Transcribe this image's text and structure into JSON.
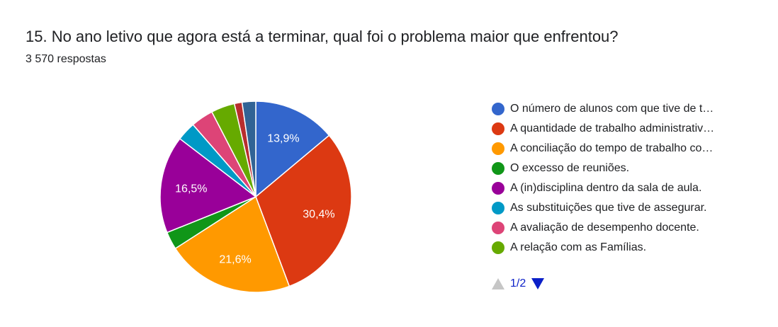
{
  "question": {
    "title": "15. No ano letivo que agora está a terminar, qual foi o problema maior que enfrentou?",
    "responses": "3 570 respostas"
  },
  "pager": {
    "text": "1/2",
    "prev_icon": "triangle-up-icon",
    "next_icon": "triangle-down-icon"
  },
  "chart_data": {
    "type": "pie",
    "title": "",
    "start_angle_deg": 90,
    "direction": "clockwise",
    "legend_position": "right",
    "slices": [
      {
        "label": "O número de alunos com que tive de t…",
        "value": 13.9,
        "display": "13,9%",
        "color": "#3366cc"
      },
      {
        "label": "A quantidade de trabalho administrativ…",
        "value": 30.4,
        "display": "30,4%",
        "color": "#dc3912"
      },
      {
        "label": "A conciliação do tempo de trabalho co…",
        "value": 21.6,
        "display": "21,6%",
        "color": "#ff9900"
      },
      {
        "label": "O excesso de reuniões.",
        "value": 3.0,
        "display": "",
        "color": "#109618"
      },
      {
        "label": "A (in)disciplina dentro da sala de aula.",
        "value": 16.5,
        "display": "16,5%",
        "color": "#990099"
      },
      {
        "label": "As substituições que tive de assegurar.",
        "value": 3.2,
        "display": "",
        "color": "#0099c6"
      },
      {
        "label": "A avaliação de desempenho docente.",
        "value": 3.8,
        "display": "",
        "color": "#dd4477"
      },
      {
        "label": "A relação com as Famílias.",
        "value": 4.0,
        "display": "",
        "color": "#66aa00"
      },
      {
        "label": "",
        "value": 1.3,
        "display": "",
        "color": "#b82e2e"
      },
      {
        "label": "",
        "value": 2.3,
        "display": "",
        "color": "#316395"
      }
    ]
  }
}
